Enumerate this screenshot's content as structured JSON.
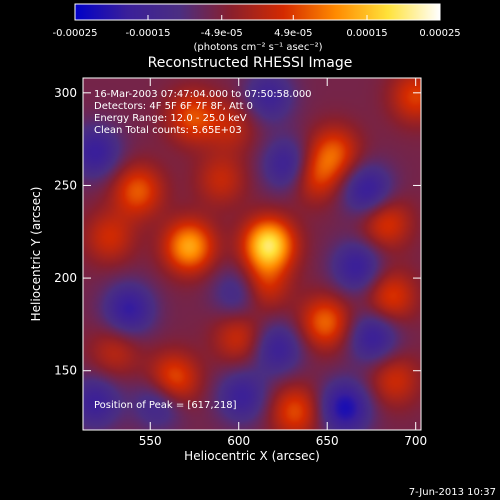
{
  "chart_data": {
    "type": "heatmap",
    "title": "Reconstructed RHESSI Image",
    "xlabel": "Heliocentric X (arcsec)",
    "ylabel": "Heliocentric Y (arcsec)",
    "xlim": [
      512,
      703
    ],
    "ylim": [
      118,
      308
    ],
    "x_ticks": [
      550,
      600,
      650,
      700
    ],
    "y_ticks": [
      150,
      200,
      250,
      300
    ],
    "colorbar": {
      "range": [
        -0.00025,
        0.00025
      ],
      "tick_values": [
        -0.00025,
        -0.00015,
        -4.9e-05,
        4.9e-05,
        0.00015,
        0.00025
      ],
      "tick_labels": [
        "-0.00025",
        "-0.00015",
        "-4.9e-05",
        "4.9e-05",
        "0.00015",
        "0.00025"
      ],
      "unit_label": "(photons cm⁻² s⁻¹ asec⁻²)",
      "colors": [
        "#0000c8",
        "#3a1f9a",
        "#4b2e82",
        "#8a1f2c",
        "#d42a00",
        "#ff8a00",
        "#ffe23a",
        "#ffffff"
      ]
    },
    "annotations": [
      "16-Mar-2003 07:47:04.000 to 07:50:58.000",
      "Detectors: 4F 5F 6F 7F 8F, Att 0",
      "Energy Range: 12.0 - 25.0 keV",
      "Clean     Total counts: 5.65E+03"
    ],
    "peak_label": "Position of Peak = [617,218]",
    "peak": [
      617,
      218
    ],
    "sources": [
      {
        "x": 617,
        "y": 218,
        "amp": 0.00025
      },
      {
        "x": 572,
        "y": 217,
        "amp": 0.00019
      },
      {
        "x": 574,
        "y": 287,
        "amp": 0.00012
      },
      {
        "x": 543,
        "y": 247,
        "amp": 0.00013
      },
      {
        "x": 590,
        "y": 253,
        "amp": 8e-05
      },
      {
        "x": 654,
        "y": 268,
        "amp": 0.00012
      },
      {
        "x": 643,
        "y": 255,
        "amp": 0.00011
      },
      {
        "x": 649,
        "y": 176,
        "amp": 0.00014
      },
      {
        "x": 683,
        "y": 230,
        "amp": 0.00011
      },
      {
        "x": 686,
        "y": 190,
        "amp": 0.00011
      },
      {
        "x": 563,
        "y": 145,
        "amp": 0.00014
      },
      {
        "x": 600,
        "y": 168,
        "amp": 9e-05
      },
      {
        "x": 632,
        "y": 128,
        "amp": 0.00012
      },
      {
        "x": 527,
        "y": 222,
        "amp": 9e-05
      },
      {
        "x": 530,
        "y": 160,
        "amp": 7e-05
      },
      {
        "x": 700,
        "y": 298,
        "amp": 0.00011
      },
      {
        "x": 688,
        "y": 145,
        "amp": 9e-05
      },
      {
        "x": 614,
        "y": 196,
        "amp": 0.0001
      },
      {
        "x": 596,
        "y": 282,
        "amp": 7e-05
      },
      {
        "x": 519,
        "y": 268,
        "amp": -0.00012
      },
      {
        "x": 538,
        "y": 183,
        "amp": -0.00013
      },
      {
        "x": 555,
        "y": 133,
        "amp": -0.0001
      },
      {
        "x": 600,
        "y": 192,
        "amp": -9e-05
      },
      {
        "x": 628,
        "y": 261,
        "amp": -0.00012
      },
      {
        "x": 673,
        "y": 247,
        "amp": -0.00013
      },
      {
        "x": 667,
        "y": 206,
        "amp": -0.00012
      },
      {
        "x": 622,
        "y": 162,
        "amp": -0.00011
      },
      {
        "x": 676,
        "y": 168,
        "amp": -0.00012
      },
      {
        "x": 660,
        "y": 130,
        "amp": -0.00016
      },
      {
        "x": 602,
        "y": 136,
        "amp": -0.00011
      },
      {
        "x": 519,
        "y": 133,
        "amp": -0.00011
      },
      {
        "x": 617,
        "y": 298,
        "amp": -0.0001
      }
    ],
    "source_width_arcsec": 10
  },
  "footer": {
    "date": "7-Jun-2013 10:37"
  }
}
